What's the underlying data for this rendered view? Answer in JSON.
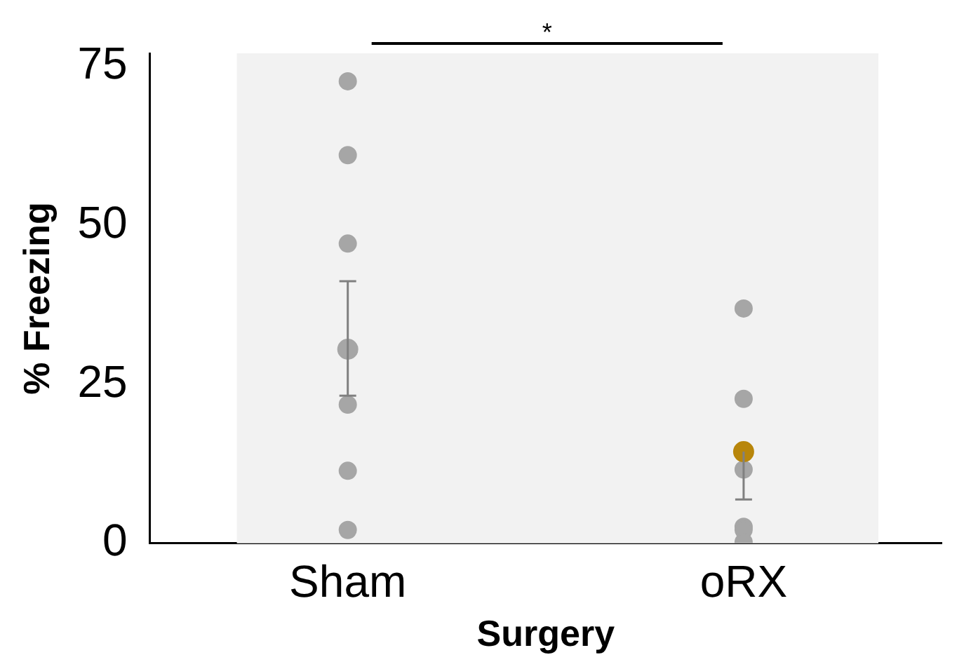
{
  "chart_data": {
    "type": "scatter",
    "xlabel": "Surgery",
    "ylabel": "% Freezing",
    "categories": [
      "Sham",
      "oRX"
    ],
    "ylim": [
      0,
      77
    ],
    "yticks": [
      0,
      25,
      50,
      75
    ],
    "grid": false,
    "legend": false,
    "marker": "circle",
    "annotations": [
      "*"
    ],
    "series": [
      {
        "color": "#a6a6a6",
        "x": [
          "Sham",
          "Sham",
          "Sham",
          "Sham",
          "Sham",
          "Sham",
          "oRX",
          "oRX",
          "oRX",
          "oRX",
          "oRX",
          "oRX"
        ],
        "values": [
          72.6,
          61.0,
          47.1,
          21.8,
          11.4,
          2.1,
          36.9,
          22.7,
          11.6,
          2.6,
          2.1,
          0.2
        ]
      },
      {
        "colors": [
          "#a6a6a6",
          "#b8860b"
        ],
        "x": [
          "Sham",
          "oRX"
        ],
        "values": [
          30.5,
          14.4
        ],
        "errors": [
          [
            23.2,
            41.2
          ],
          [
            6.9,
            14.4
          ]
        ]
      }
    ]
  }
}
